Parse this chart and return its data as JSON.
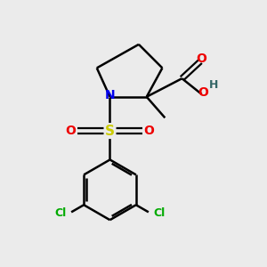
{
  "background_color": "#ebebeb",
  "atom_colors": {
    "C": "#000000",
    "N": "#0000ee",
    "O": "#ee0000",
    "S": "#cccc00",
    "Cl": "#00aa00",
    "H": "#336666"
  },
  "figsize": [
    3.0,
    3.0
  ],
  "dpi": 100,
  "xlim": [
    0,
    10
  ],
  "ylim": [
    0,
    10
  ]
}
